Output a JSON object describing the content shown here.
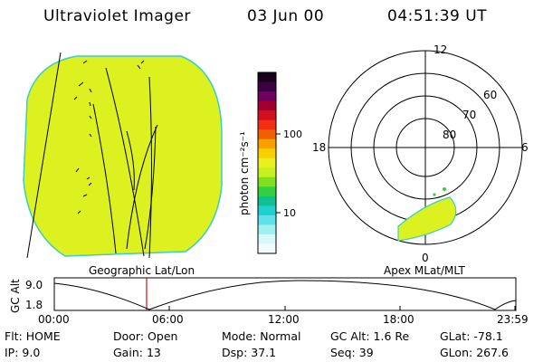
{
  "header": {
    "instrument": "Ultraviolet Imager",
    "date": "03 Jun 00",
    "time": "04:51:39 UT"
  },
  "colors": {
    "aurora_fill": "#ddf020",
    "aurora_edge": "#38d0c0",
    "marker_red": "#d01010",
    "background": "#ffffff"
  },
  "colorbar": {
    "label": "photon cm⁻²s⁻¹",
    "ticks": [
      "100",
      "10"
    ],
    "colors": [
      "#1a001a",
      "#3a0040",
      "#6e0060",
      "#a00030",
      "#d01020",
      "#f03010",
      "#f06000",
      "#f8a000",
      "#f8d000",
      "#e8f020",
      "#c8f020",
      "#80e020",
      "#30d040",
      "#10c090",
      "#20d0d0",
      "#60e0e8",
      "#a0f0f0",
      "#d8f8f8",
      "#f0fcfc"
    ]
  },
  "polar_plot": {
    "mlt_labels": {
      "top": "12",
      "left": "18",
      "right": "6",
      "bottom": "0"
    },
    "lat_labels": [
      "60",
      "70",
      "80"
    ]
  },
  "geo_panel_label": "Geographic Lat/Lon",
  "apex_panel_label": "Apex MLat/MLT",
  "altitude_plot": {
    "axis_title": "GC Alt",
    "y_ticks": [
      "9.0",
      "1.8"
    ],
    "x_ticks": [
      "00:00",
      "06:00",
      "12:00",
      "18:00",
      "23:59"
    ]
  },
  "status": {
    "row1": [
      {
        "key": "Flt:",
        "value": "HOME"
      },
      {
        "key": "Door:",
        "value": "Open"
      },
      {
        "key": "Mode:",
        "value": "Normal"
      },
      {
        "key": "GC Alt:",
        "value": "1.6 Re"
      },
      {
        "key": "GLat:",
        "value": "-78.1"
      }
    ],
    "row2": [
      {
        "key": "IP:",
        "value": "9.0"
      },
      {
        "key": "Gain:",
        "value": "13"
      },
      {
        "key": "Dsp:",
        "value": "37.1"
      },
      {
        "key": "Seq:",
        "value": "39"
      },
      {
        "key": "GLon:",
        "value": "267.6"
      }
    ]
  }
}
